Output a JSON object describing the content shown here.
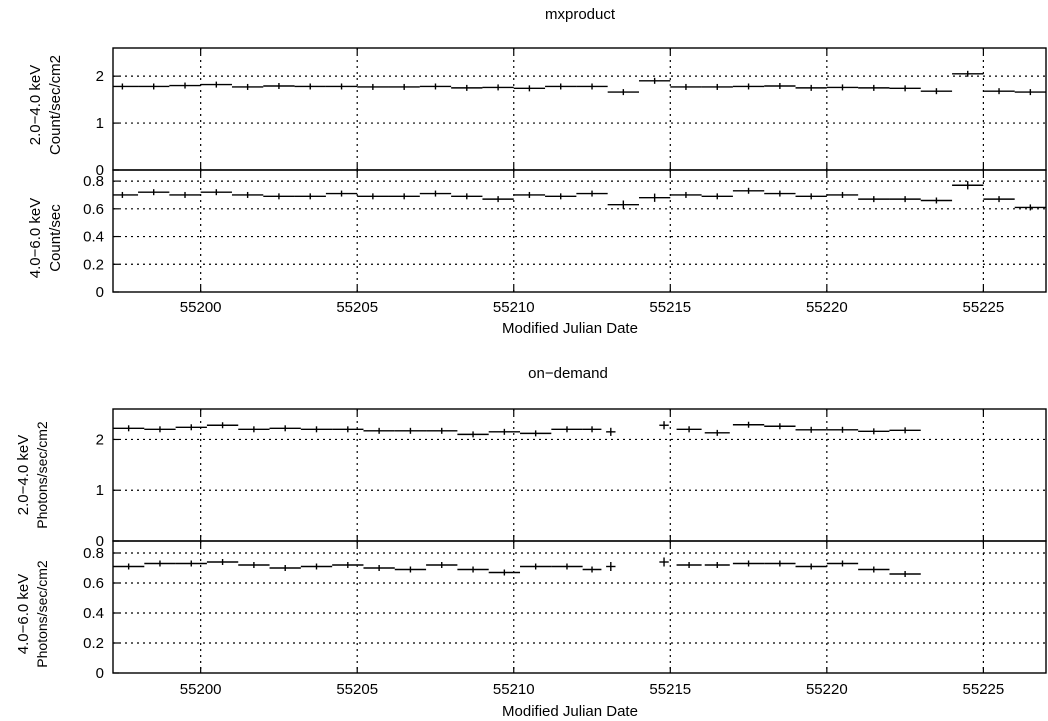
{
  "chart_data": [
    {
      "type": "scatter",
      "title": "mxproduct",
      "xlabel": "Modified Julian Date",
      "xlim": [
        55197.2,
        55227.0
      ],
      "x_ticks": [
        "55200",
        "55205",
        "55210",
        "55215",
        "55220",
        "55225"
      ],
      "grid": true,
      "panels": [
        {
          "ylabel": "2.0−4.0 keV\nCount/sec/cm2",
          "ylim": [
            0,
            2.6
          ],
          "y_ticks": [
            "0",
            "1",
            "2"
          ],
          "series": [
            {
              "x": [
                55197.5,
                55198.5,
                55199.5,
                55200.5,
                55201.5,
                55202.5,
                55203.5,
                55204.5,
                55205.5,
                55206.5,
                55207.5,
                55208.5,
                55209.5,
                55210.5,
                55211.5,
                55212.5,
                55213.5,
                55214.5,
                55215.5,
                55216.5,
                55217.5,
                55218.5,
                55219.5,
                55220.5,
                55221.5,
                55222.5,
                55223.5,
                55224.5,
                55225.5,
                55226.5
              ],
              "xerr": 0.5,
              "y": [
                1.78,
                1.78,
                1.8,
                1.82,
                1.77,
                1.79,
                1.78,
                1.78,
                1.77,
                1.77,
                1.78,
                1.75,
                1.76,
                1.74,
                1.78,
                1.78,
                1.66,
                1.9,
                1.77,
                1.77,
                1.78,
                1.79,
                1.75,
                1.76,
                1.75,
                1.74,
                1.68,
                2.05,
                1.68,
                1.66
              ],
              "yerr": [
                0.01,
                0.01,
                0.02,
                0.01,
                0.01,
                0.01,
                0.01,
                0.01,
                0.01,
                0.01,
                0.01,
                0.01,
                0.01,
                0.01,
                0.01,
                0.01,
                0.03,
                0.05,
                0.02,
                0.02,
                0.01,
                0.02,
                0.01,
                0.01,
                0.01,
                0.01,
                0.02,
                0.05,
                0.02,
                0.02
              ]
            }
          ]
        },
        {
          "ylabel": "4.0−6.0 keV\nCount/sec",
          "ylim": [
            0,
            0.88
          ],
          "y_ticks": [
            "0",
            "0.2",
            "0.4",
            "0.6",
            "0.8"
          ],
          "series": [
            {
              "x": [
                55197.5,
                55198.5,
                55199.5,
                55200.5,
                55201.5,
                55202.5,
                55203.5,
                55204.5,
                55205.5,
                55206.5,
                55207.5,
                55208.5,
                55209.5,
                55210.5,
                55211.5,
                55212.5,
                55213.5,
                55214.5,
                55215.5,
                55216.5,
                55217.5,
                55218.5,
                55219.5,
                55220.5,
                55221.5,
                55222.5,
                55223.5,
                55224.5,
                55225.5,
                55226.5
              ],
              "xerr": 0.5,
              "y": [
                0.7,
                0.72,
                0.7,
                0.72,
                0.7,
                0.69,
                0.69,
                0.71,
                0.69,
                0.69,
                0.71,
                0.69,
                0.67,
                0.7,
                0.69,
                0.71,
                0.63,
                0.68,
                0.7,
                0.69,
                0.73,
                0.71,
                0.69,
                0.7,
                0.67,
                0.67,
                0.66,
                0.77,
                0.67,
                0.61
              ],
              "yerr": [
                0.01,
                0.01,
                0.01,
                0.01,
                0.01,
                0.01,
                0.01,
                0.01,
                0.01,
                0.01,
                0.01,
                0.01,
                0.01,
                0.01,
                0.01,
                0.01,
                0.03,
                0.03,
                0.02,
                0.01,
                0.01,
                0.01,
                0.01,
                0.01,
                0.01,
                0.01,
                0.01,
                0.03,
                0.01,
                0.01
              ]
            }
          ]
        }
      ]
    },
    {
      "type": "scatter",
      "title": "on−demand",
      "xlabel": "Modified Julian Date",
      "xlim": [
        55197.2,
        55227.0
      ],
      "x_ticks": [
        "55200",
        "55205",
        "55210",
        "55215",
        "55220",
        "55225"
      ],
      "grid": true,
      "panels": [
        {
          "ylabel": "2.0−4.0 keV\nPhotons/sec/cm2",
          "ylim": [
            0,
            2.6
          ],
          "y_ticks": [
            "0",
            "1",
            "2"
          ],
          "series": [
            {
              "x": [
                55197.7,
                55198.7,
                55199.7,
                55200.7,
                55201.7,
                55202.7,
                55203.7,
                55204.7,
                55205.7,
                55206.7,
                55207.7,
                55208.7,
                55209.7,
                55210.7,
                55211.7,
                55212.5,
                55213.1,
                55214.8,
                55215.6,
                55216.5,
                55217.5,
                55218.5,
                55219.5,
                55220.5,
                55221.5,
                55222.5
              ],
              "xerr": [
                0.5,
                0.5,
                0.5,
                0.5,
                0.5,
                0.5,
                0.5,
                0.5,
                0.5,
                0.5,
                0.5,
                0.5,
                0.5,
                0.5,
                0.5,
                0.3,
                0.15,
                0.15,
                0.4,
                0.4,
                0.5,
                0.5,
                0.5,
                0.5,
                0.5,
                0.5
              ],
              "y": [
                2.22,
                2.2,
                2.24,
                2.28,
                2.2,
                2.22,
                2.2,
                2.2,
                2.17,
                2.17,
                2.17,
                2.1,
                2.15,
                2.12,
                2.2,
                2.2,
                2.15,
                2.28,
                2.2,
                2.13,
                2.29,
                2.26,
                2.19,
                2.19,
                2.16,
                2.18
              ],
              "yerr": [
                0.02,
                0.02,
                0.02,
                0.02,
                0.02,
                0.02,
                0.02,
                0.02,
                0.02,
                0.02,
                0.02,
                0.02,
                0.02,
                0.02,
                0.03,
                0.05,
                0.08,
                0.08,
                0.06,
                0.05,
                0.03,
                0.03,
                0.02,
                0.02,
                0.02,
                0.02
              ]
            }
          ]
        },
        {
          "ylabel": "4.0−6.0 keV\nPhotons/sec/cm2",
          "ylim": [
            0,
            0.88
          ],
          "y_ticks": [
            "0",
            "0.2",
            "0.4",
            "0.6",
            "0.8"
          ],
          "series": [
            {
              "x": [
                55197.7,
                55198.7,
                55199.7,
                55200.7,
                55201.7,
                55202.7,
                55203.7,
                55204.7,
                55205.7,
                55206.7,
                55207.7,
                55208.7,
                55209.7,
                55210.7,
                55211.7,
                55212.5,
                55213.1,
                55214.8,
                55215.6,
                55216.5,
                55217.5,
                55218.5,
                55219.5,
                55220.5,
                55221.5,
                55222.5
              ],
              "xerr": [
                0.5,
                0.5,
                0.5,
                0.5,
                0.5,
                0.5,
                0.5,
                0.5,
                0.5,
                0.5,
                0.5,
                0.5,
                0.5,
                0.5,
                0.5,
                0.3,
                0.15,
                0.15,
                0.4,
                0.4,
                0.5,
                0.5,
                0.5,
                0.5,
                0.5,
                0.5
              ],
              "y": [
                0.71,
                0.73,
                0.73,
                0.74,
                0.72,
                0.7,
                0.71,
                0.72,
                0.7,
                0.69,
                0.72,
                0.69,
                0.67,
                0.71,
                0.71,
                0.69,
                0.71,
                0.74,
                0.72,
                0.72,
                0.73,
                0.73,
                0.71,
                0.73,
                0.69,
                0.66
              ],
              "yerr": [
                0.01,
                0.01,
                0.01,
                0.01,
                0.01,
                0.01,
                0.01,
                0.01,
                0.01,
                0.01,
                0.01,
                0.01,
                0.01,
                0.01,
                0.01,
                0.02,
                0.03,
                0.03,
                0.02,
                0.02,
                0.01,
                0.01,
                0.01,
                0.01,
                0.01,
                0.01
              ]
            }
          ]
        }
      ]
    }
  ]
}
